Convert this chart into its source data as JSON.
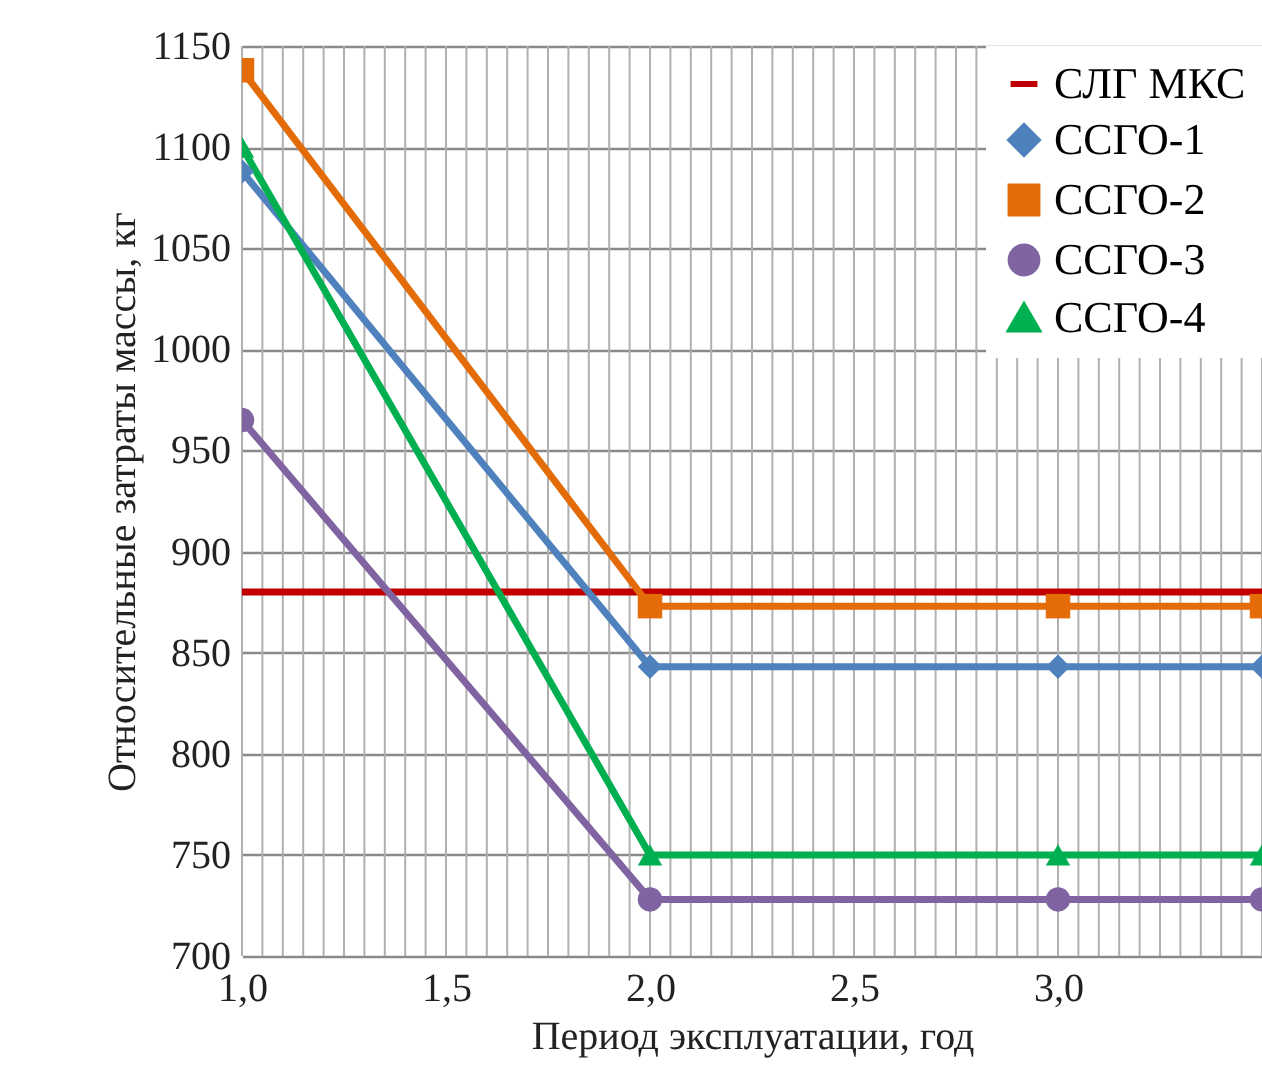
{
  "chart_data": {
    "type": "line",
    "xlabel": "Период эксплуатации, год",
    "ylabel": "Относительные затраты массы, кг",
    "xlim": [
      1,
      3.5
    ],
    "ylim": [
      700,
      1150
    ],
    "xticks": [
      {
        "value": 1,
        "label": "1,0"
      },
      {
        "value": 1.05,
        "label": null
      },
      {
        "value": 1.1,
        "label": null
      },
      {
        "value": 1.15,
        "label": null
      },
      {
        "value": 1.2,
        "label": null
      },
      {
        "value": 1.25,
        "label": null
      },
      {
        "value": 1.3,
        "label": null
      },
      {
        "value": 1.35,
        "label": null
      },
      {
        "value": 1.4,
        "label": null
      },
      {
        "value": 1.45,
        "label": null
      },
      {
        "value": 1.5,
        "label": "1,5"
      },
      {
        "value": 1.55,
        "label": null
      },
      {
        "value": 1.6,
        "label": null
      },
      {
        "value": 1.65,
        "label": null
      },
      {
        "value": 1.7,
        "label": null
      },
      {
        "value": 1.75,
        "label": null
      },
      {
        "value": 1.8,
        "label": null
      },
      {
        "value": 1.85,
        "label": null
      },
      {
        "value": 1.9,
        "label": null
      },
      {
        "value": 1.95,
        "label": null
      },
      {
        "value": 2,
        "label": "2,0"
      },
      {
        "value": 2.05,
        "label": null
      },
      {
        "value": 2.1,
        "label": null
      },
      {
        "value": 2.15,
        "label": null
      },
      {
        "value": 2.2,
        "label": null
      },
      {
        "value": 2.25,
        "label": null
      },
      {
        "value": 2.3,
        "label": null
      },
      {
        "value": 2.35,
        "label": null
      },
      {
        "value": 2.4,
        "label": null
      },
      {
        "value": 2.45,
        "label": null
      },
      {
        "value": 2.5,
        "label": "2,5"
      },
      {
        "value": 2.55,
        "label": null
      },
      {
        "value": 2.6,
        "label": null
      },
      {
        "value": 2.65,
        "label": null
      },
      {
        "value": 2.7,
        "label": null
      },
      {
        "value": 2.75,
        "label": null
      },
      {
        "value": 2.8,
        "label": null
      },
      {
        "value": 2.85,
        "label": null
      },
      {
        "value": 2.9,
        "label": null
      },
      {
        "value": 2.95,
        "label": null
      },
      {
        "value": 3,
        "label": "3,0"
      },
      {
        "value": 3.05,
        "label": null
      },
      {
        "value": 3.1,
        "label": null
      },
      {
        "value": 3.15,
        "label": null
      },
      {
        "value": 3.2,
        "label": null
      },
      {
        "value": 3.25,
        "label": null
      },
      {
        "value": 3.3,
        "label": null
      },
      {
        "value": 3.35,
        "label": null
      },
      {
        "value": 3.4,
        "label": null
      },
      {
        "value": 3.45,
        "label": null
      },
      {
        "value": 3.5,
        "label": null
      }
    ],
    "yticks": [
      700,
      750,
      800,
      850,
      900,
      950,
      1000,
      1050,
      1100,
      1150
    ],
    "grid": true,
    "legend": "top right",
    "line_style": "solid",
    "series": [
      {
        "name": "СЛГ МКС",
        "color": "#c00000",
        "marker": "none",
        "x": [
          1,
          3.5
        ],
        "values": [
          880,
          880
        ]
      },
      {
        "name": "ССГО-1",
        "color": "#4f81bd",
        "marker": "diamond",
        "x": [
          1,
          2,
          3,
          3.5
        ],
        "values": [
          1088,
          843,
          843,
          843
        ]
      },
      {
        "name": "ССГО-2",
        "color": "#e36c09",
        "marker": "square",
        "x": [
          1,
          2,
          3,
          3.5
        ],
        "values": [
          1138,
          873,
          873,
          873
        ]
      },
      {
        "name": "ССГО-3",
        "color": "#8064a2",
        "marker": "circle",
        "x": [
          1,
          2,
          3,
          3.5
        ],
        "values": [
          965,
          728,
          728,
          728
        ]
      },
      {
        "name": "ССГО-4",
        "color": "#00b050",
        "marker": "triangle",
        "x": [
          1,
          2,
          3,
          3.5
        ],
        "values": [
          1100,
          750,
          750,
          750
        ]
      }
    ]
  }
}
